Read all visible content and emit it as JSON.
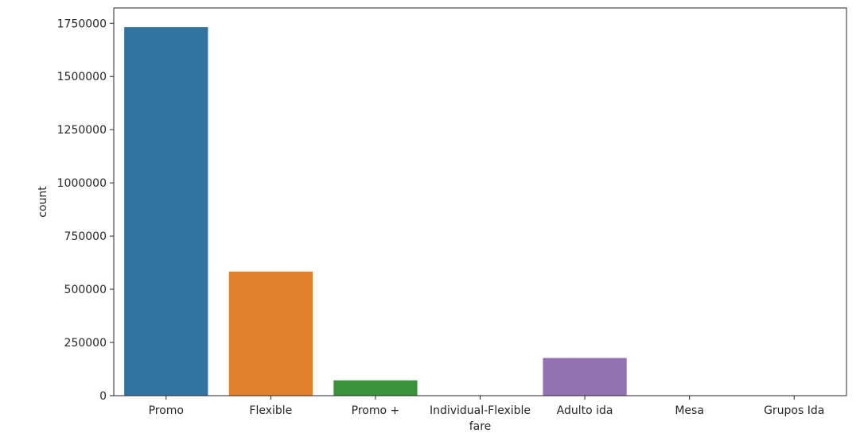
{
  "chart_data": {
    "type": "bar",
    "title": "",
    "xlabel": "fare",
    "ylabel": "count",
    "categories": [
      "Promo",
      "Flexible",
      "Promo +",
      "Individual-Flexible",
      "Adulto ida",
      "Mesa",
      "Grupos Ida"
    ],
    "values": [
      1732000,
      583000,
      72000,
      0,
      177000,
      0,
      0
    ],
    "colors": [
      "#3274a1",
      "#e1812c",
      "#3a923a",
      "#c03d3e",
      "#9372b2",
      "#845b53",
      "#d684bd"
    ],
    "ylim": [
      0,
      1822000
    ],
    "yticks": [
      0,
      250000,
      500000,
      750000,
      1000000,
      1250000,
      1500000,
      1750000
    ],
    "ytick_labels": [
      "0",
      "250000",
      "500000",
      "750000",
      "1000000",
      "1250000",
      "1500000",
      "1750000"
    ],
    "grid": false,
    "legend": "none"
  }
}
